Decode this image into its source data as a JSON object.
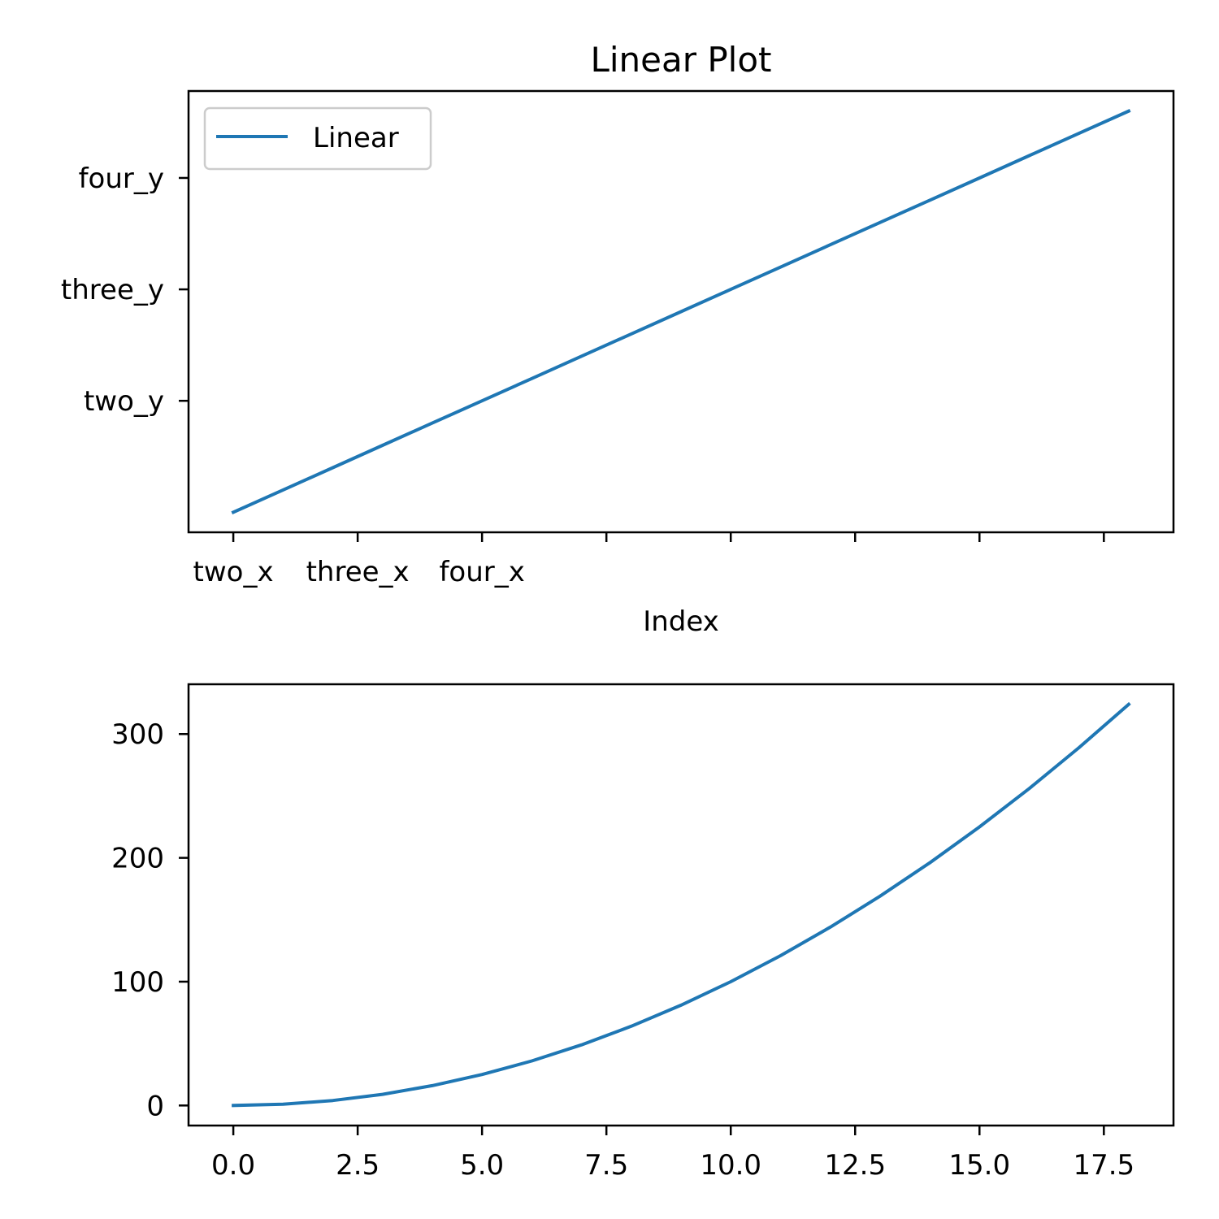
{
  "chart_data": [
    {
      "type": "line",
      "title": "Linear Plot",
      "xlabel": "Index",
      "ylabel": "",
      "x": [
        0,
        1,
        2,
        3,
        4,
        5,
        6,
        7,
        8,
        9,
        10,
        11,
        12,
        13,
        14,
        15,
        16,
        17,
        18
      ],
      "series": [
        {
          "name": "Linear",
          "color": "#1f77b4",
          "values": [
            0,
            1,
            2,
            3,
            4,
            5,
            6,
            7,
            8,
            9,
            10,
            11,
            12,
            13,
            14,
            15,
            16,
            17,
            18
          ]
        }
      ],
      "x_ticks": [
        0,
        2.5,
        5,
        7.5,
        10,
        12.5,
        15,
        17.5
      ],
      "x_tick_labels": [
        "two_x",
        "three_x",
        "four_x",
        "",
        "",
        "",
        "",
        ""
      ],
      "y_ticks": [
        5,
        10,
        15
      ],
      "y_tick_labels": [
        "two_y",
        "three_y",
        "four_y"
      ],
      "xlim": [
        -0.9,
        18.9
      ],
      "ylim": [
        -0.9,
        18.9
      ],
      "grid": false,
      "legend": "upper-left"
    },
    {
      "type": "line",
      "title": "",
      "xlabel": "",
      "ylabel": "",
      "x": [
        0,
        1,
        2,
        3,
        4,
        5,
        6,
        7,
        8,
        9,
        10,
        11,
        12,
        13,
        14,
        15,
        16,
        17,
        18
      ],
      "series": [
        {
          "color": "#1f77b4",
          "values": [
            0,
            1,
            4,
            9,
            16,
            25,
            36,
            49,
            64,
            81,
            100,
            121,
            144,
            169,
            196,
            225,
            256,
            289,
            324
          ]
        }
      ],
      "x_ticks": [
        0,
        2.5,
        5,
        7.5,
        10,
        12.5,
        15,
        17.5
      ],
      "x_tick_labels": [
        "0.0",
        "2.5",
        "5.0",
        "7.5",
        "10.0",
        "12.5",
        "15.0",
        "17.5"
      ],
      "y_ticks": [
        0,
        100,
        200,
        300
      ],
      "y_tick_labels": [
        "0",
        "100",
        "200",
        "300"
      ],
      "xlim": [
        -0.9,
        18.9
      ],
      "ylim": [
        -16.2,
        340.2
      ],
      "grid": false,
      "legend": "none"
    }
  ]
}
